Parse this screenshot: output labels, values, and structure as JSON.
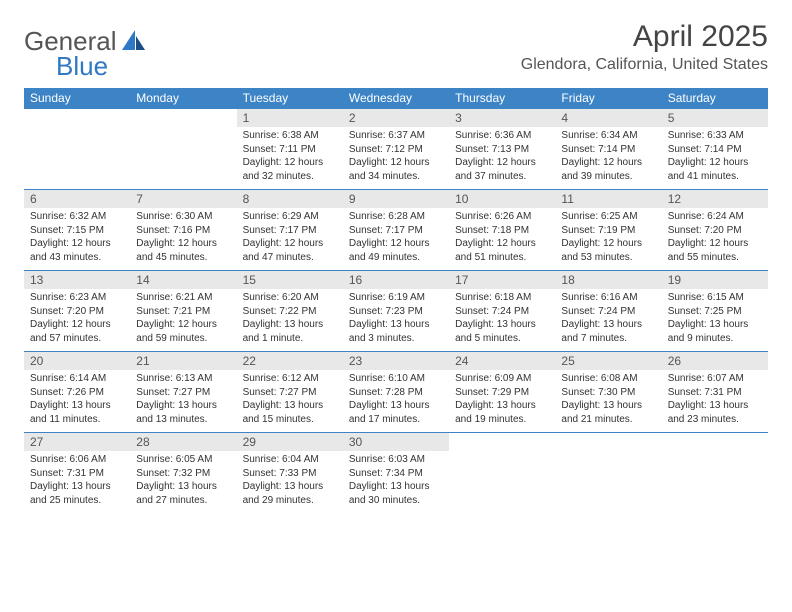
{
  "brand": {
    "general": "General",
    "blue": "Blue",
    "accent": "#2f78c4"
  },
  "title": "April 2025",
  "location": "Glendora, California, United States",
  "colors": {
    "header_bg": "#3d84c6",
    "header_fg": "#ffffff",
    "daynum_bg": "#e8e8e8",
    "text": "#333333",
    "rule": "#3d84c6"
  },
  "weekdays": [
    "Sunday",
    "Monday",
    "Tuesday",
    "Wednesday",
    "Thursday",
    "Friday",
    "Saturday"
  ],
  "weeks": [
    [
      null,
      null,
      {
        "n": "1",
        "sr": "Sunrise: 6:38 AM",
        "ss": "Sunset: 7:11 PM",
        "d1": "Daylight: 12 hours",
        "d2": "and 32 minutes."
      },
      {
        "n": "2",
        "sr": "Sunrise: 6:37 AM",
        "ss": "Sunset: 7:12 PM",
        "d1": "Daylight: 12 hours",
        "d2": "and 34 minutes."
      },
      {
        "n": "3",
        "sr": "Sunrise: 6:36 AM",
        "ss": "Sunset: 7:13 PM",
        "d1": "Daylight: 12 hours",
        "d2": "and 37 minutes."
      },
      {
        "n": "4",
        "sr": "Sunrise: 6:34 AM",
        "ss": "Sunset: 7:14 PM",
        "d1": "Daylight: 12 hours",
        "d2": "and 39 minutes."
      },
      {
        "n": "5",
        "sr": "Sunrise: 6:33 AM",
        "ss": "Sunset: 7:14 PM",
        "d1": "Daylight: 12 hours",
        "d2": "and 41 minutes."
      }
    ],
    [
      {
        "n": "6",
        "sr": "Sunrise: 6:32 AM",
        "ss": "Sunset: 7:15 PM",
        "d1": "Daylight: 12 hours",
        "d2": "and 43 minutes."
      },
      {
        "n": "7",
        "sr": "Sunrise: 6:30 AM",
        "ss": "Sunset: 7:16 PM",
        "d1": "Daylight: 12 hours",
        "d2": "and 45 minutes."
      },
      {
        "n": "8",
        "sr": "Sunrise: 6:29 AM",
        "ss": "Sunset: 7:17 PM",
        "d1": "Daylight: 12 hours",
        "d2": "and 47 minutes."
      },
      {
        "n": "9",
        "sr": "Sunrise: 6:28 AM",
        "ss": "Sunset: 7:17 PM",
        "d1": "Daylight: 12 hours",
        "d2": "and 49 minutes."
      },
      {
        "n": "10",
        "sr": "Sunrise: 6:26 AM",
        "ss": "Sunset: 7:18 PM",
        "d1": "Daylight: 12 hours",
        "d2": "and 51 minutes."
      },
      {
        "n": "11",
        "sr": "Sunrise: 6:25 AM",
        "ss": "Sunset: 7:19 PM",
        "d1": "Daylight: 12 hours",
        "d2": "and 53 minutes."
      },
      {
        "n": "12",
        "sr": "Sunrise: 6:24 AM",
        "ss": "Sunset: 7:20 PM",
        "d1": "Daylight: 12 hours",
        "d2": "and 55 minutes."
      }
    ],
    [
      {
        "n": "13",
        "sr": "Sunrise: 6:23 AM",
        "ss": "Sunset: 7:20 PM",
        "d1": "Daylight: 12 hours",
        "d2": "and 57 minutes."
      },
      {
        "n": "14",
        "sr": "Sunrise: 6:21 AM",
        "ss": "Sunset: 7:21 PM",
        "d1": "Daylight: 12 hours",
        "d2": "and 59 minutes."
      },
      {
        "n": "15",
        "sr": "Sunrise: 6:20 AM",
        "ss": "Sunset: 7:22 PM",
        "d1": "Daylight: 13 hours",
        "d2": "and 1 minute."
      },
      {
        "n": "16",
        "sr": "Sunrise: 6:19 AM",
        "ss": "Sunset: 7:23 PM",
        "d1": "Daylight: 13 hours",
        "d2": "and 3 minutes."
      },
      {
        "n": "17",
        "sr": "Sunrise: 6:18 AM",
        "ss": "Sunset: 7:24 PM",
        "d1": "Daylight: 13 hours",
        "d2": "and 5 minutes."
      },
      {
        "n": "18",
        "sr": "Sunrise: 6:16 AM",
        "ss": "Sunset: 7:24 PM",
        "d1": "Daylight: 13 hours",
        "d2": "and 7 minutes."
      },
      {
        "n": "19",
        "sr": "Sunrise: 6:15 AM",
        "ss": "Sunset: 7:25 PM",
        "d1": "Daylight: 13 hours",
        "d2": "and 9 minutes."
      }
    ],
    [
      {
        "n": "20",
        "sr": "Sunrise: 6:14 AM",
        "ss": "Sunset: 7:26 PM",
        "d1": "Daylight: 13 hours",
        "d2": "and 11 minutes."
      },
      {
        "n": "21",
        "sr": "Sunrise: 6:13 AM",
        "ss": "Sunset: 7:27 PM",
        "d1": "Daylight: 13 hours",
        "d2": "and 13 minutes."
      },
      {
        "n": "22",
        "sr": "Sunrise: 6:12 AM",
        "ss": "Sunset: 7:27 PM",
        "d1": "Daylight: 13 hours",
        "d2": "and 15 minutes."
      },
      {
        "n": "23",
        "sr": "Sunrise: 6:10 AM",
        "ss": "Sunset: 7:28 PM",
        "d1": "Daylight: 13 hours",
        "d2": "and 17 minutes."
      },
      {
        "n": "24",
        "sr": "Sunrise: 6:09 AM",
        "ss": "Sunset: 7:29 PM",
        "d1": "Daylight: 13 hours",
        "d2": "and 19 minutes."
      },
      {
        "n": "25",
        "sr": "Sunrise: 6:08 AM",
        "ss": "Sunset: 7:30 PM",
        "d1": "Daylight: 13 hours",
        "d2": "and 21 minutes."
      },
      {
        "n": "26",
        "sr": "Sunrise: 6:07 AM",
        "ss": "Sunset: 7:31 PM",
        "d1": "Daylight: 13 hours",
        "d2": "and 23 minutes."
      }
    ],
    [
      {
        "n": "27",
        "sr": "Sunrise: 6:06 AM",
        "ss": "Sunset: 7:31 PM",
        "d1": "Daylight: 13 hours",
        "d2": "and 25 minutes."
      },
      {
        "n": "28",
        "sr": "Sunrise: 6:05 AM",
        "ss": "Sunset: 7:32 PM",
        "d1": "Daylight: 13 hours",
        "d2": "and 27 minutes."
      },
      {
        "n": "29",
        "sr": "Sunrise: 6:04 AM",
        "ss": "Sunset: 7:33 PM",
        "d1": "Daylight: 13 hours",
        "d2": "and 29 minutes."
      },
      {
        "n": "30",
        "sr": "Sunrise: 6:03 AM",
        "ss": "Sunset: 7:34 PM",
        "d1": "Daylight: 13 hours",
        "d2": "and 30 minutes."
      },
      null,
      null,
      null
    ]
  ]
}
